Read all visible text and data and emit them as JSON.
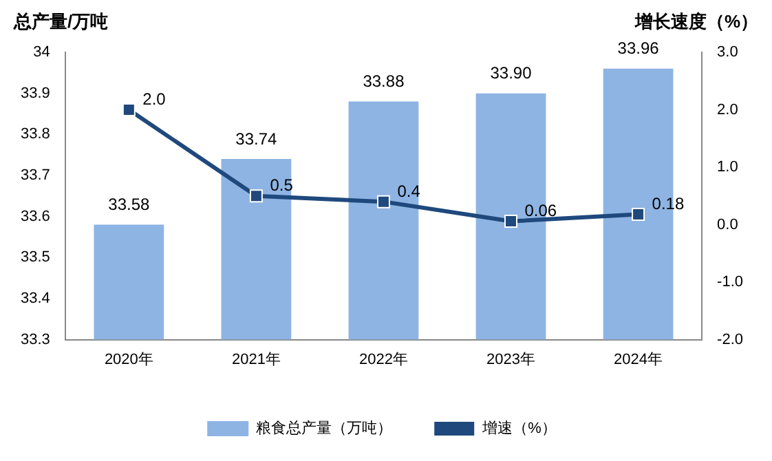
{
  "chart_data": {
    "type": "bar",
    "ylabel": "总产量/万吨",
    "y2label": "增长速度（%）",
    "categories": [
      "2020年",
      "2021年",
      "2022年",
      "2023年",
      "2024年"
    ],
    "series": [
      {
        "name": "粮食总产量（万吨）",
        "color": "#8eb4e3",
        "values": [
          33.58,
          33.74,
          33.88,
          33.9,
          33.96
        ],
        "value_labels": [
          "33.58",
          "33.74",
          "33.88",
          "33.90",
          "33.96"
        ]
      },
      {
        "name": "增速（%）",
        "type": "line",
        "axis": "y2",
        "color": "#1f497d",
        "marker": "square",
        "line_style": "solid",
        "values": [
          2.0,
          0.5,
          0.4,
          0.06,
          0.18
        ],
        "value_labels": [
          "2.0",
          "0.5",
          "0.4",
          "0.06",
          "0.18"
        ]
      }
    ],
    "ylim": [
      33.3,
      34
    ],
    "yticks": [
      33.3,
      33.4,
      33.5,
      33.6,
      33.7,
      33.8,
      33.9,
      34
    ],
    "y2lim": [
      -2,
      3
    ],
    "y2ticks": [
      {
        "value": -2,
        "label": "-2.0"
      },
      {
        "value": -1,
        "label": "-1.0"
      },
      {
        "value": 0,
        "label": "0.0"
      },
      {
        "value": 1,
        "label": "1.0"
      },
      {
        "value": 2,
        "label": "2.0"
      },
      {
        "value": 3,
        "label": "3.0"
      }
    ],
    "grid": false,
    "legend": "bottom"
  }
}
